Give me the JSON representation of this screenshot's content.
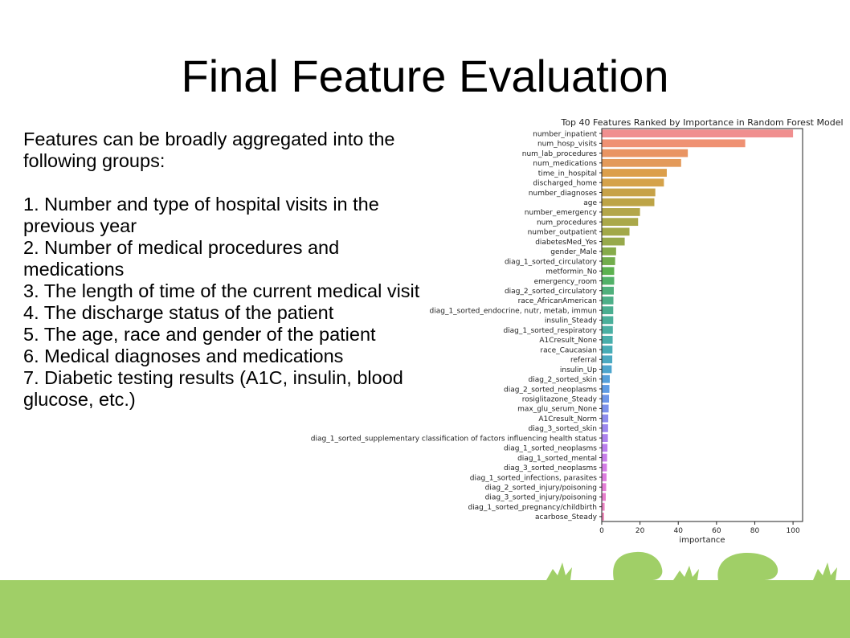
{
  "slide": {
    "title": "Final Feature Evaluation",
    "intro": "Features can be broadly aggregated into the following groups:",
    "items": [
      "1. Number and type of hospital visits in the previous year",
      "2. Number of medical procedures and medications",
      "3. The length of time of the current medical visit",
      "4. The discharge status of the patient",
      "5. The age, race and gender of the patient",
      "6. Medical diagnoses and medications",
      "7. Diabetic testing results (A1C, insulin, blood glucose, etc.)"
    ]
  },
  "colors": {
    "ground": "#a0cf67",
    "decoration": "#a0cf67"
  },
  "chart_data": {
    "type": "bar",
    "orientation": "horizontal",
    "title": "Top 40 Features Ranked by Importance in Random Forest Model",
    "xlabel": "importance",
    "ylabel": "",
    "xlim": [
      0,
      105
    ],
    "xticks": [
      0,
      20,
      40,
      60,
      80,
      100
    ],
    "grid": false,
    "categories": [
      "number_inpatient",
      "num_hosp_visits",
      "num_lab_procedures",
      "num_medications",
      "time_in_hospital",
      "discharged_home",
      "number_diagnoses",
      "age",
      "number_emergency",
      "num_procedures",
      "number_outpatient",
      "diabetesMed_Yes",
      "gender_Male",
      "diag_1_sorted_circulatory",
      "metformin_No",
      "emergency_room",
      "diag_2_sorted_circulatory",
      "race_AfricanAmerican",
      "diag_1_sorted_endocrine, nutr, metab, immun",
      "insulin_Steady",
      "diag_1_sorted_respiratory",
      "A1Cresult_None",
      "race_Caucasian",
      "referral",
      "insulin_Up",
      "diag_2_sorted_skin",
      "diag_2_sorted_neoplasms",
      "rosiglitazone_Steady",
      "max_glu_serum_None",
      "A1Cresult_Norm",
      "diag_3_sorted_skin",
      "diag_1_sorted_supplementary classification of factors influencing health status",
      "diag_1_sorted_neoplasms",
      "diag_1_sorted_mental",
      "diag_3_sorted_neoplasms",
      "diag_1_sorted_infections, parasites",
      "diag_2_sorted_injury/poisoning",
      "diag_3_sorted_injury/poisoning",
      "diag_1_sorted_pregnancy/childbirth",
      "acarbose_Steady"
    ],
    "values": [
      100,
      75,
      45,
      41.5,
      34,
      32.5,
      28,
      27.5,
      20,
      19,
      14.5,
      12,
      7.5,
      7,
      6.5,
      6.5,
      6.3,
      6.1,
      6,
      6,
      5.8,
      5.7,
      5.6,
      5.5,
      5.2,
      4.2,
      4,
      3.8,
      3.6,
      3.4,
      3.3,
      3.2,
      3,
      2.8,
      2.7,
      2.5,
      2.3,
      2.1,
      1.5,
      1.2
    ],
    "colors": [
      "#f08f8f",
      "#ef9173",
      "#e99462",
      "#e39a5a",
      "#dc9f4b",
      "#d5a24a",
      "#c7a248",
      "#bda447",
      "#b3a64a",
      "#aaa84a",
      "#a2a848",
      "#97a94b",
      "#86ab4a",
      "#72ad4c",
      "#5cb14f",
      "#52b168",
      "#50b07c",
      "#4daf88",
      "#4aae90",
      "#4aaf9a",
      "#4aafa3",
      "#48aeab",
      "#47acb6",
      "#4ba9c1",
      "#4da5cd",
      "#56a0da",
      "#5f9ce4",
      "#6e97e9",
      "#7d92ec",
      "#8e8dee",
      "#9d88ef",
      "#ad83ee",
      "#bb7fee",
      "#c87eea",
      "#d47de6",
      "#dd7ddf",
      "#e47dd6",
      "#e77fcd",
      "#ea82c2",
      "#ed85b7"
    ]
  }
}
